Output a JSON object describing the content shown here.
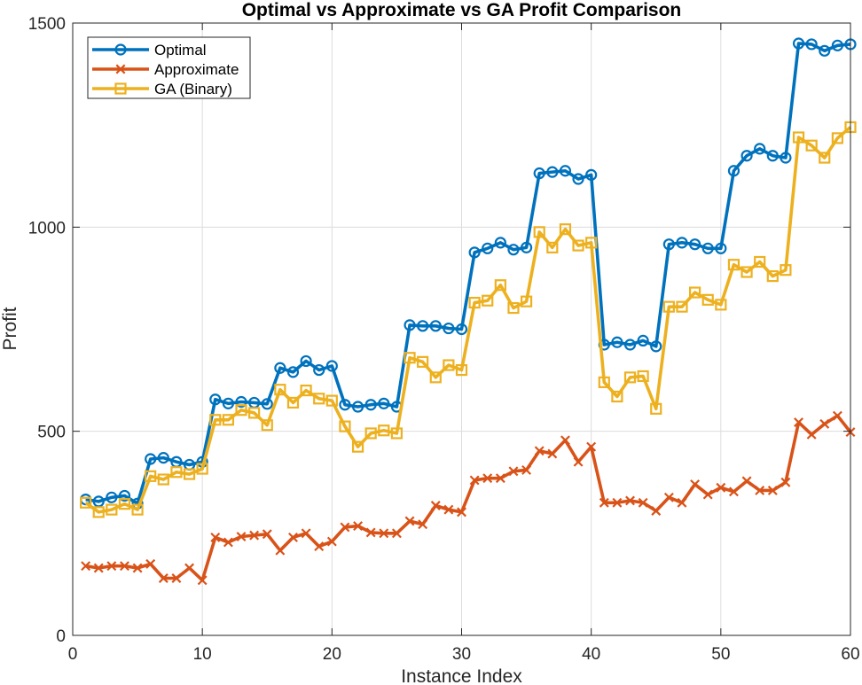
{
  "chart_data": {
    "type": "line",
    "title": "Optimal vs Approximate vs GA Profit Comparison",
    "xlabel": "Instance Index",
    "ylabel": "Profit",
    "xlim": [
      0,
      60
    ],
    "ylim": [
      0,
      1500
    ],
    "xticks": [
      0,
      10,
      20,
      30,
      40,
      50,
      60
    ],
    "yticks": [
      0,
      500,
      1000,
      1500
    ],
    "grid": true,
    "legend_position": "top-left",
    "x": [
      1,
      2,
      3,
      4,
      5,
      6,
      7,
      8,
      9,
      10,
      11,
      12,
      13,
      14,
      15,
      16,
      17,
      18,
      19,
      20,
      21,
      22,
      23,
      24,
      25,
      26,
      27,
      28,
      29,
      30,
      31,
      32,
      33,
      34,
      35,
      36,
      37,
      38,
      39,
      40,
      41,
      42,
      43,
      44,
      45,
      46,
      47,
      48,
      49,
      50,
      51,
      52,
      53,
      54,
      55,
      56,
      57,
      58,
      59,
      60
    ],
    "series": [
      {
        "name": "Optimal",
        "color": "#0072BD",
        "marker": "o",
        "values": [
          333,
          328,
          338,
          342,
          323,
          432,
          435,
          425,
          418,
          425,
          578,
          568,
          572,
          570,
          567,
          655,
          645,
          672,
          650,
          660,
          565,
          560,
          565,
          568,
          560,
          760,
          758,
          758,
          752,
          750,
          938,
          948,
          962,
          945,
          950,
          1132,
          1135,
          1138,
          1118,
          1128,
          712,
          718,
          712,
          722,
          708,
          958,
          962,
          958,
          948,
          948,
          1138,
          1175,
          1192,
          1175,
          1170,
          1450,
          1448,
          1432,
          1445,
          1448
        ]
      },
      {
        "name": "Approximate",
        "color": "#D95319",
        "marker": "x",
        "values": [
          170,
          165,
          170,
          170,
          165,
          175,
          140,
          140,
          165,
          135,
          240,
          228,
          242,
          245,
          248,
          208,
          240,
          250,
          218,
          230,
          265,
          268,
          252,
          250,
          250,
          280,
          272,
          318,
          308,
          302,
          380,
          385,
          385,
          402,
          405,
          452,
          445,
          478,
          425,
          462,
          325,
          325,
          330,
          325,
          305,
          338,
          325,
          370,
          345,
          362,
          352,
          378,
          355,
          355,
          375,
          522,
          492,
          518,
          538,
          498
        ]
      },
      {
        "name": "GA (Binary)",
        "color": "#EDB120",
        "marker": "s",
        "values": [
          325,
          302,
          308,
          322,
          308,
          390,
          382,
          400,
          395,
          408,
          528,
          528,
          552,
          545,
          515,
          602,
          570,
          600,
          580,
          575,
          512,
          462,
          495,
          502,
          495,
          680,
          670,
          632,
          662,
          650,
          815,
          820,
          858,
          802,
          818,
          988,
          950,
          995,
          955,
          962,
          620,
          585,
          632,
          635,
          555,
          805,
          805,
          840,
          822,
          810,
          908,
          890,
          915,
          880,
          895,
          1220,
          1200,
          1170,
          1218,
          1245
        ]
      }
    ]
  }
}
